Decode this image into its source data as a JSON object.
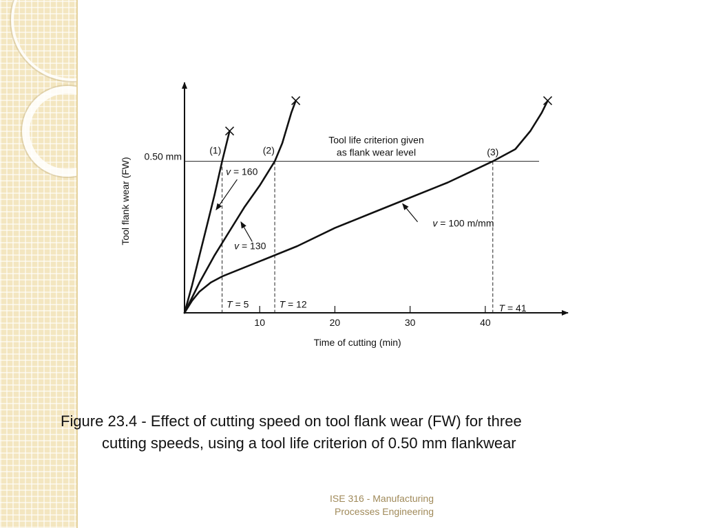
{
  "caption": {
    "line1": "Figure 23.4 - Effect of cutting speed on tool flank wear (FW) for three",
    "line2": "cutting speeds, using a tool life criterion of 0.50 mm flankwear"
  },
  "footer": {
    "line1": "ISE 316  -  Manufacturing",
    "line2": "Processes Engineering"
  },
  "chart_data": {
    "type": "line",
    "xlabel": "Time of cutting (min)",
    "ylabel": "Tool flank wear (FW)",
    "xlim": [
      0,
      51
    ],
    "ylim": [
      0,
      0.76
    ],
    "x_ticks": [
      10,
      20,
      30,
      40
    ],
    "y_tick_label": "0.50 mm",
    "criterion": {
      "value": 0.5,
      "label_line1": "Tool life criterion given",
      "label_line2": "as flank wear level"
    },
    "grid": false,
    "series": [
      {
        "name": "(1)",
        "speed_var": "v",
        "speed_value": "= 160",
        "tool_life_var": "T",
        "tool_life_value": "= 5",
        "tool_life": 5,
        "points": [
          [
            0,
            0
          ],
          [
            1,
            0.09
          ],
          [
            2,
            0.19
          ],
          [
            3,
            0.29
          ],
          [
            4,
            0.39
          ],
          [
            5,
            0.5
          ],
          [
            6,
            0.6
          ]
        ]
      },
      {
        "name": "(2)",
        "speed_var": "v",
        "speed_value": "= 130",
        "tool_life_var": "T",
        "tool_life_value": "= 12",
        "tool_life": 12,
        "points": [
          [
            0,
            0
          ],
          [
            1,
            0.05
          ],
          [
            2,
            0.1
          ],
          [
            4,
            0.19
          ],
          [
            6,
            0.27
          ],
          [
            8,
            0.35
          ],
          [
            10,
            0.42
          ],
          [
            12,
            0.5
          ],
          [
            13,
            0.56
          ],
          [
            14.2,
            0.66
          ],
          [
            14.8,
            0.7
          ]
        ]
      },
      {
        "name": "(3)",
        "speed_var": "v",
        "speed_value": "= 100 m/mm",
        "tool_life_var": "T",
        "tool_life_value": "= 41",
        "tool_life": 41,
        "points": [
          [
            0,
            0
          ],
          [
            1,
            0.04
          ],
          [
            2,
            0.07
          ],
          [
            3.5,
            0.1
          ],
          [
            5,
            0.12
          ],
          [
            10,
            0.17
          ],
          [
            15,
            0.22
          ],
          [
            20,
            0.28
          ],
          [
            25,
            0.33
          ],
          [
            30,
            0.38
          ],
          [
            35,
            0.43
          ],
          [
            41,
            0.5
          ],
          [
            44,
            0.54
          ],
          [
            46,
            0.6
          ],
          [
            47.5,
            0.66
          ],
          [
            48.3,
            0.7
          ]
        ]
      }
    ]
  }
}
